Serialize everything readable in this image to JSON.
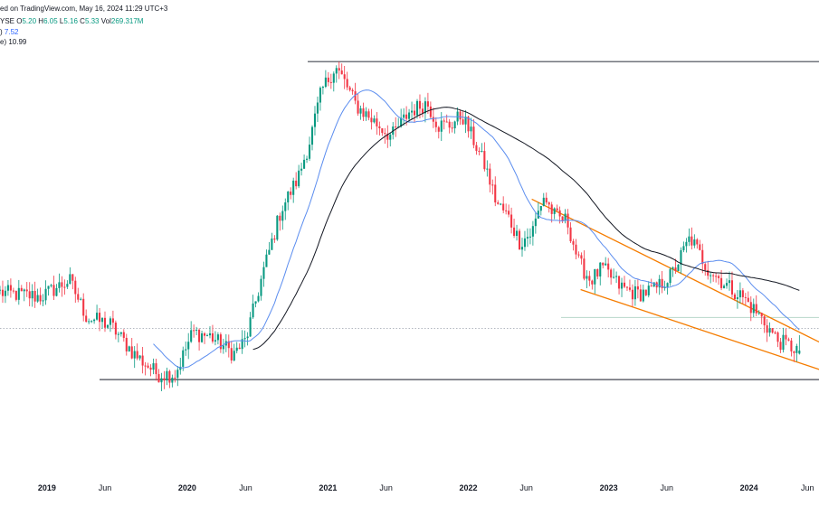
{
  "header": {
    "line1": "ed on TradingView.com, May 16, 2024 11:29 UTC+3",
    "line2": {
      "exchange": "YSE",
      "o_label": "O",
      "o_value": "5.20",
      "h_label": "H",
      "h_value": "6.05",
      "l_label": "L",
      "l_value": "5.16",
      "c_label": "C",
      "c_value": "5.33",
      "vol_label": "Vol",
      "vol_value": "269.317M"
    },
    "line3": {
      "prefix": ")",
      "value": "7.52"
    },
    "line4": {
      "prefix": "e)",
      "value": "10.99"
    }
  },
  "colors": {
    "up": "#089981",
    "down": "#f23645",
    "ma_fast": "#5b8def",
    "ma_slow": "#131722",
    "trend": "#f57c00",
    "level": "#434651",
    "green_level": "#b7d7c9"
  },
  "chart_data": {
    "type": "candlestick",
    "x_axis_labels": [
      "2019",
      "Jun",
      "2020",
      "Jun",
      "2021",
      "Jun",
      "2022",
      "Jun",
      "2023",
      "Jun",
      "2024",
      "Jun"
    ],
    "x_axis_label_dates": [
      "2019-01",
      "2019-06",
      "2020-01",
      "2020-06",
      "2021-01",
      "2021-06",
      "2022-01",
      "2022-06",
      "2023-01",
      "2023-06",
      "2024-01",
      "2024-06"
    ],
    "x_range": [
      "2018-09-01",
      "2024-07-01"
    ],
    "y_range": [
      2.5,
      60
    ],
    "y_axis": "hidden",
    "grid": false,
    "last_price": {
      "open": 5.2,
      "high": 6.05,
      "low": 5.16,
      "close": 5.33
    },
    "ma_fast_last": 7.52,
    "ma_slow_last": 10.99,
    "anchors": [
      [
        "2018-09-01",
        8.6
      ],
      [
        "2018-12-15",
        8.3
      ],
      [
        "2019-03-01",
        9.5
      ],
      [
        "2019-04-15",
        7.0
      ],
      [
        "2019-06-15",
        6.6
      ],
      [
        "2019-08-15",
        5.2
      ],
      [
        "2019-10-15",
        4.4
      ],
      [
        "2019-12-01",
        4.4
      ],
      [
        "2020-01-15",
        6.2
      ],
      [
        "2020-03-01",
        6.0
      ],
      [
        "2020-05-01",
        5.2
      ],
      [
        "2020-06-01",
        5.8
      ],
      [
        "2020-07-15",
        10.0
      ],
      [
        "2020-09-01",
        17.0
      ],
      [
        "2020-10-15",
        22.0
      ],
      [
        "2020-11-15",
        30.0
      ],
      [
        "2020-12-15",
        45.0
      ],
      [
        "2021-01-20",
        55.0
      ],
      [
        "2021-02-15",
        48.0
      ],
      [
        "2021-03-15",
        40.0
      ],
      [
        "2021-05-01",
        35.0
      ],
      [
        "2021-06-15",
        31.0
      ],
      [
        "2021-08-01",
        38.0
      ],
      [
        "2021-09-15",
        41.0
      ],
      [
        "2021-10-15",
        34.0
      ],
      [
        "2021-11-15",
        34.0
      ],
      [
        "2021-12-15",
        37.0
      ],
      [
        "2022-01-15",
        30.0
      ],
      [
        "2022-02-15",
        24.0
      ],
      [
        "2022-03-15",
        18.0
      ],
      [
        "2022-04-15",
        16.0
      ],
      [
        "2022-05-15",
        13.0
      ],
      [
        "2022-06-15",
        14.0
      ],
      [
        "2022-07-15",
        19.0
      ],
      [
        "2022-08-15",
        16.0
      ],
      [
        "2022-09-15",
        15.5
      ],
      [
        "2022-10-15",
        11.0
      ],
      [
        "2022-11-15",
        9.5
      ],
      [
        "2022-12-15",
        10.5
      ],
      [
        "2023-02-01",
        9.0
      ],
      [
        "2023-03-15",
        8.5
      ],
      [
        "2023-05-01",
        8.8
      ],
      [
        "2023-06-15",
        10.0
      ],
      [
        "2023-08-01",
        13.5
      ],
      [
        "2023-09-15",
        10.5
      ],
      [
        "2023-11-01",
        9.2
      ],
      [
        "2023-12-15",
        8.3
      ],
      [
        "2024-02-01",
        7.0
      ],
      [
        "2024-03-15",
        5.8
      ],
      [
        "2024-04-20",
        5.5
      ],
      [
        "2024-05-16",
        5.33
      ]
    ],
    "resistance_level": 57.3,
    "support_level": 4.2,
    "dotted_level": 6.4,
    "green_level": 7.0,
    "trend_upper": [
      [
        "2022-06-15",
        18.5
      ],
      [
        "2024-07-15",
        5.6
      ]
    ],
    "trend_lower": [
      [
        "2022-10-20",
        8.8
      ],
      [
        "2024-07-15",
        4.5
      ]
    ]
  }
}
